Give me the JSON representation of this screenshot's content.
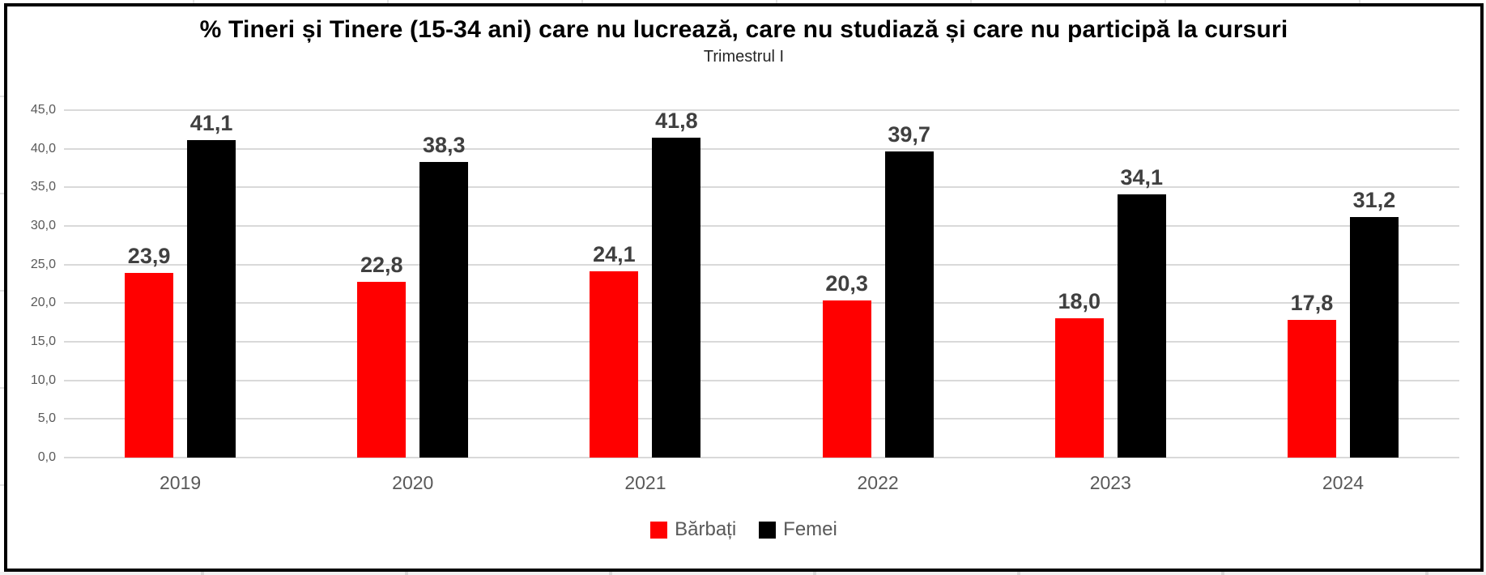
{
  "chart_data": {
    "type": "bar",
    "title": "% Tineri și Tinere (15-34 ani) care nu lucrează, care nu studiază și care nu participă la cursuri",
    "subtitle": "Trimestrul I",
    "categories": [
      "2019",
      "2020",
      "2021",
      "2022",
      "2023",
      "2024"
    ],
    "series": [
      {
        "name": "Bărbați",
        "color": "#ff0000",
        "values": [
          23.9,
          22.8,
          24.1,
          20.3,
          18.0,
          17.8
        ],
        "labels": [
          "23,9",
          "22,8",
          "24,1",
          "20,3",
          "18,0",
          "17,8"
        ]
      },
      {
        "name": "Femei",
        "color": "#000000",
        "values": [
          41.1,
          38.3,
          41.8,
          39.7,
          34.1,
          31.2
        ],
        "labels": [
          "41,1",
          "38,3",
          "41,8",
          "39,7",
          "34,1",
          "31,2"
        ]
      }
    ],
    "ylim": [
      0,
      45
    ],
    "yticks": [
      {
        "label": "0,0",
        "value": 0
      },
      {
        "label": "5,0",
        "value": 5
      },
      {
        "label": "10,0",
        "value": 10
      },
      {
        "label": "15,0",
        "value": 15
      },
      {
        "label": "20,0",
        "value": 20
      },
      {
        "label": "25,0",
        "value": 25
      },
      {
        "label": "30,0",
        "value": 30
      },
      {
        "label": "35,0",
        "value": 35
      },
      {
        "label": "40,0",
        "value": 40
      },
      {
        "label": "45,0",
        "value": 45
      }
    ],
    "grid": true,
    "legend_position": "bottom",
    "colors": {
      "gridline": "#d9d9d9",
      "axis_text": "#595959",
      "data_label": "#404040",
      "title": "#000000",
      "subtitle": "#262626"
    }
  }
}
